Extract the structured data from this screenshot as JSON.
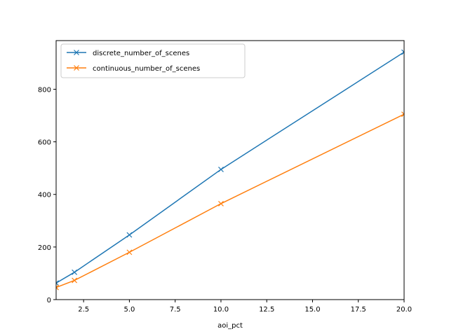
{
  "chart_data": {
    "type": "line",
    "title": "",
    "xlabel": "aoi_pct",
    "ylabel": "",
    "x": [
      1,
      2,
      5,
      10,
      20
    ],
    "xlim": [
      1,
      20
    ],
    "ylim": [
      0,
      985
    ],
    "xticks": [
      2.5,
      5.0,
      7.5,
      10.0,
      12.5,
      15.0,
      17.5,
      20.0
    ],
    "xtick_labels": [
      "2.5",
      "5.0",
      "7.5",
      "10.0",
      "12.5",
      "15.0",
      "17.5",
      "20.0"
    ],
    "yticks": [
      0,
      200,
      400,
      600,
      800
    ],
    "ytick_labels": [
      "0",
      "200",
      "400",
      "600",
      "800"
    ],
    "grid": false,
    "legend_position": "top-left",
    "series": [
      {
        "name": "discrete_number_of_scenes",
        "color": "#1f77b4",
        "marker": "x",
        "values": [
          63,
          104,
          246,
          495,
          941
        ]
      },
      {
        "name": "continuous_number_of_scenes",
        "color": "#ff7f0e",
        "marker": "x",
        "values": [
          46,
          73,
          180,
          365,
          705
        ]
      }
    ]
  }
}
